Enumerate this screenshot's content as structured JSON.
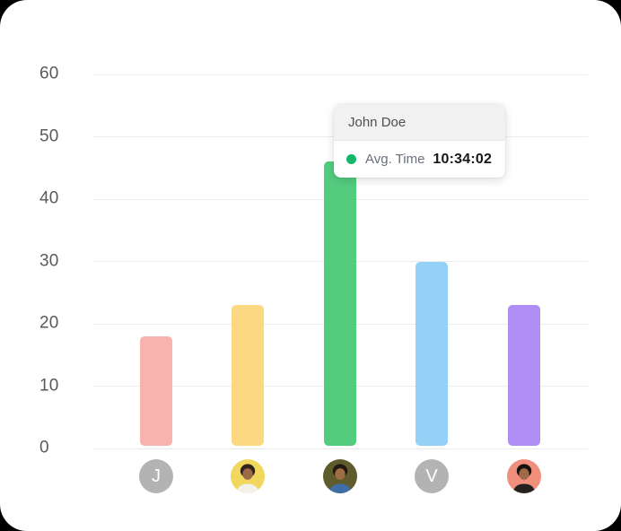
{
  "surface": {
    "background": "#000000",
    "card_color": "#ffffff"
  },
  "chart_data": {
    "type": "bar",
    "title": "",
    "xlabel": "",
    "ylabel": "",
    "categories": [
      "J",
      "",
      "John Doe",
      "V",
      ""
    ],
    "values": [
      18,
      23,
      46,
      30,
      23
    ],
    "bar_colors": [
      "#f9b3ae",
      "#fcd883",
      "#53cc7e",
      "#93d2f6",
      "#b18ef6"
    ],
    "ylim": [
      0,
      60
    ],
    "y_ticks": [
      0,
      10,
      20,
      30,
      40,
      50,
      60
    ],
    "grid": true,
    "grid_color": "#ececec",
    "tick_label_color": "#5a5a5a",
    "legend": "none",
    "hovered_index": 2
  },
  "avatars": [
    {
      "kind": "letter",
      "letter": "J",
      "bg": "#b3b3b3"
    },
    {
      "kind": "photo",
      "bg": "#f2d75e",
      "hair": "#33231a",
      "skin": "#9c6a48",
      "shirt": "#f2f1ec"
    },
    {
      "kind": "photo",
      "bg": "#5e5b2d",
      "hair": "#221911",
      "skin": "#a06e46",
      "shirt": "#3e6ea6"
    },
    {
      "kind": "letter",
      "letter": "V",
      "bg": "#b3b3b3"
    },
    {
      "kind": "photo",
      "bg": "#f08f7c",
      "hair": "#17100c",
      "skin": "#a06a48",
      "shirt": "#23211f"
    }
  ],
  "tooltip": {
    "title": "John Doe",
    "series_label": "Avg. Time",
    "value": "10:34:02",
    "dot_color": "#12b76a"
  }
}
